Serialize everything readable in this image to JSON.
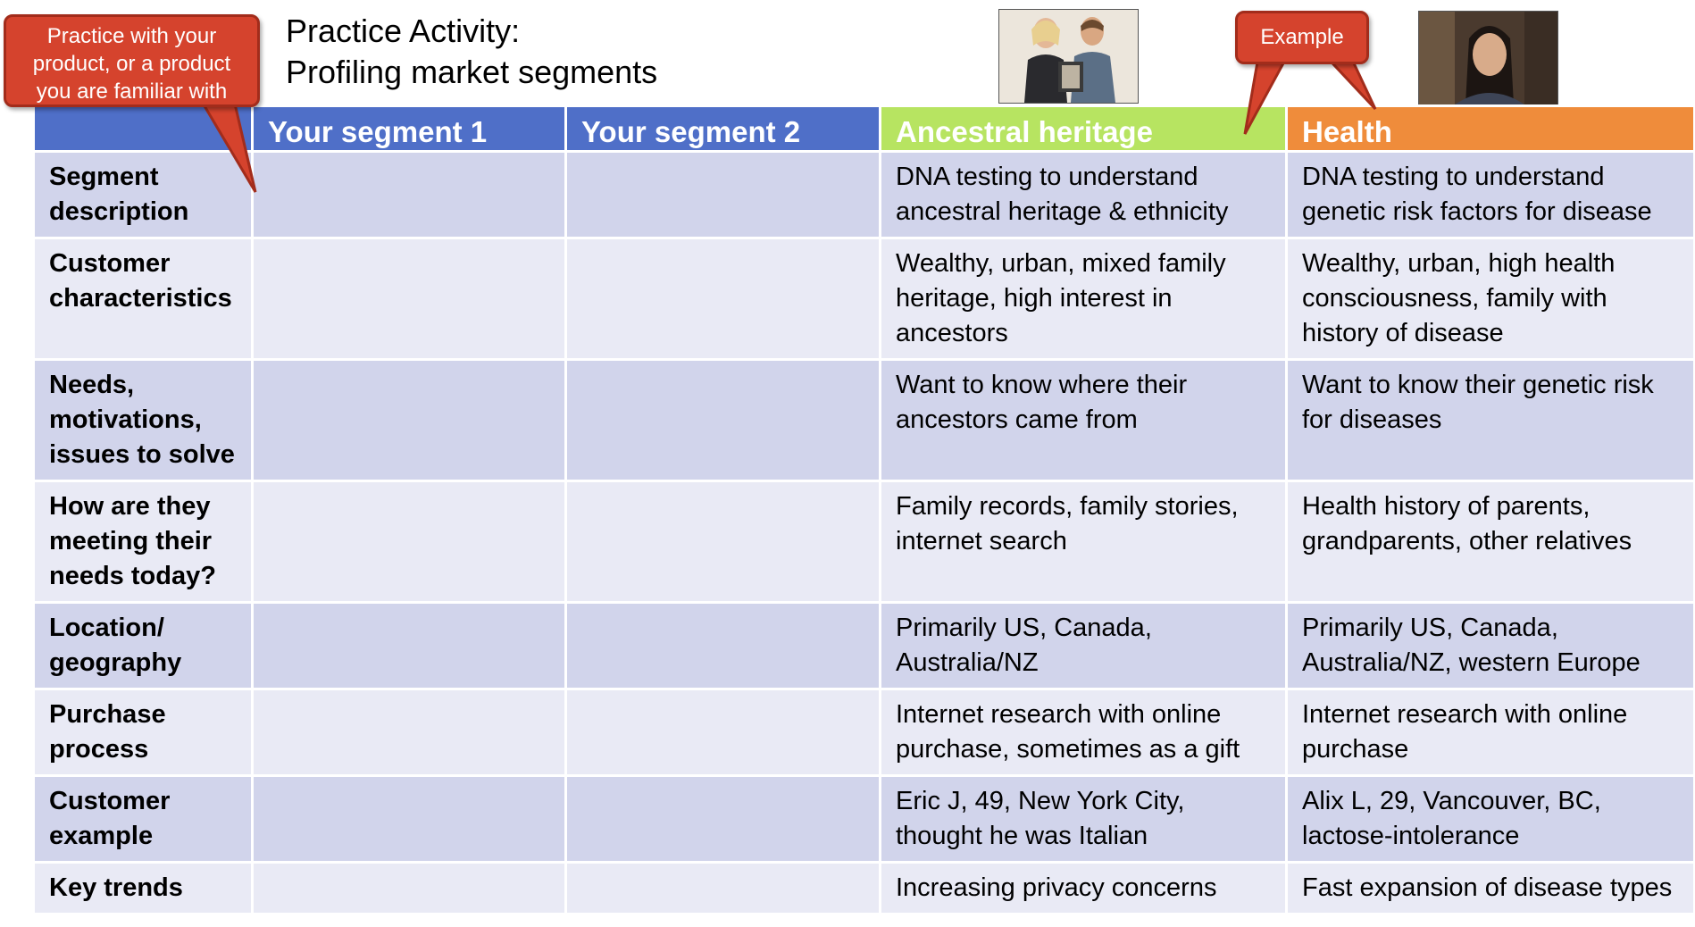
{
  "title": {
    "line1": "Practice Activity:",
    "line2": "Profiling market segments"
  },
  "callouts": {
    "practice": {
      "line1": "Practice with your",
      "line2": "product, or a product",
      "line3": "you are familiar with"
    },
    "example": "Example"
  },
  "colors": {
    "header_blue": "#4f6fc8",
    "header_green": "#b7e461",
    "header_orange": "#ef8c3b",
    "callout_red": "#d5432d",
    "row_dark": "#d1d4eb",
    "row_light": "#e9eaf5"
  },
  "table": {
    "headers": [
      "",
      "Your segment 1",
      "Your segment 2",
      "Ancestral heritage",
      "Health"
    ],
    "rows": [
      {
        "label": "Segment description",
        "seg1": "",
        "seg2": "",
        "ancestral": "DNA testing to understand ancestral heritage & ethnicity",
        "health": "DNA testing to understand genetic risk factors for disease"
      },
      {
        "label": "Customer characteristics",
        "seg1": "",
        "seg2": "",
        "ancestral": "Wealthy, urban, mixed family heritage, high interest in ancestors",
        "health": "Wealthy, urban, high health consciousness, family with history of disease"
      },
      {
        "label": "Needs, motivations, issues to solve",
        "seg1": "",
        "seg2": "",
        "ancestral": "Want to know where their ancestors came from",
        "health": "Want to know their genetic risk for diseases"
      },
      {
        "label": "How are they meeting their needs today?",
        "seg1": "",
        "seg2": "",
        "ancestral": "Family records, family stories, internet search",
        "health": "Health history of parents, grandparents, other relatives"
      },
      {
        "label": "Location/ geography",
        "seg1": "",
        "seg2": "",
        "ancestral": "Primarily US, Canada, Australia/NZ",
        "health": "Primarily US, Canada, Australia/NZ, western Europe"
      },
      {
        "label": "Purchase process",
        "seg1": "",
        "seg2": "",
        "ancestral": "Internet research with online purchase, sometimes as a gift",
        "health": "Internet research with online purchase"
      },
      {
        "label": "Customer example",
        "seg1": "",
        "seg2": "",
        "ancestral": "Eric J, 49, New York City, thought he was Italian",
        "health": "Alix L, 29, Vancouver, BC, lactose-intolerance"
      },
      {
        "label": "Key trends",
        "seg1": "",
        "seg2": "",
        "ancestral": "Increasing privacy concerns",
        "health": "Fast expansion of disease types"
      }
    ]
  }
}
